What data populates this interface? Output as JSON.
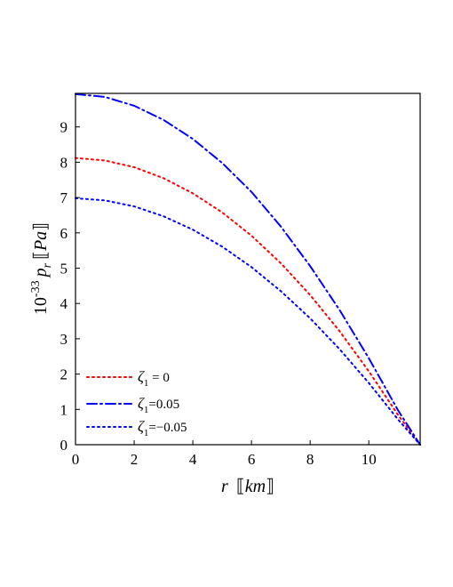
{
  "chart_data": {
    "type": "line",
    "xlabel": {
      "var": "r",
      "open": "⟦",
      "unit": "km",
      "close": "⟧"
    },
    "ylabel": {
      "prefix": "10",
      "exp": "-33",
      "var": "p",
      "sub": "r",
      "open": "⟦",
      "unit": "Pa",
      "close": "⟧"
    },
    "xlim": [
      0,
      11.75
    ],
    "ylim": [
      0,
      9.95
    ],
    "xticks": [
      0,
      2,
      4,
      6,
      8,
      10
    ],
    "yticks": [
      0,
      1,
      2,
      3,
      4,
      5,
      6,
      7,
      8,
      9
    ],
    "grid": false,
    "legend_position": "bottom-left",
    "x": [
      0,
      1,
      2,
      3,
      4,
      5,
      6,
      7,
      8,
      9,
      10,
      11,
      11.75
    ],
    "series": [
      {
        "name": {
          "sym": "ζ",
          "sub": "1",
          "rest": " = 0"
        },
        "color": "#ff0000",
        "style": "dotted",
        "values": [
          8.12,
          8.05,
          7.86,
          7.55,
          7.12,
          6.58,
          5.92,
          5.14,
          4.24,
          3.22,
          2.08,
          0.84,
          0.0
        ]
      },
      {
        "name": {
          "sym": "ζ",
          "sub": "1",
          "rest": "=0.05"
        },
        "color": "#0000ff",
        "style": "dashdot",
        "values": [
          9.93,
          9.85,
          9.6,
          9.2,
          8.66,
          7.98,
          7.16,
          6.18,
          5.06,
          3.82,
          2.45,
          0.97,
          0.0
        ]
      },
      {
        "name": {
          "sym": "ζ",
          "sub": "1",
          "rest": "=−0.05"
        },
        "color": "#0000ff",
        "style": "dotted",
        "values": [
          6.98,
          6.92,
          6.75,
          6.47,
          6.09,
          5.61,
          5.03,
          4.35,
          3.58,
          2.71,
          1.75,
          0.71,
          0.0
        ]
      }
    ]
  }
}
